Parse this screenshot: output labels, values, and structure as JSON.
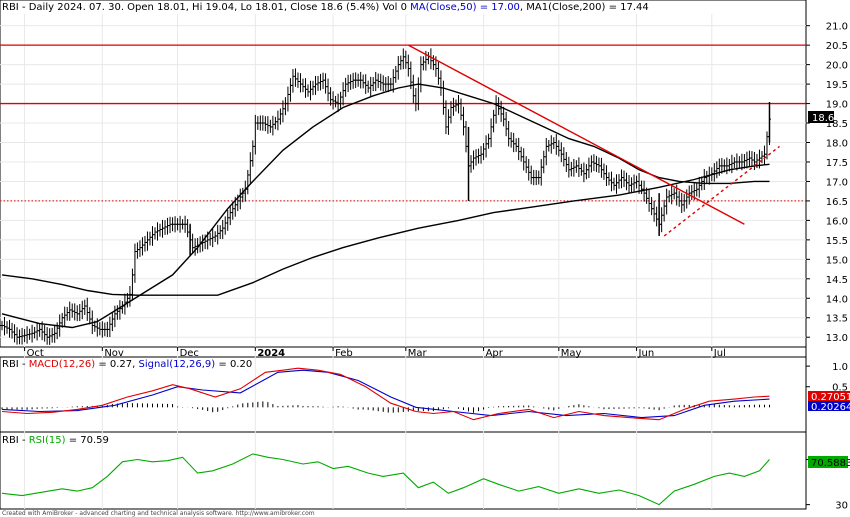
{
  "chart_data": [
    {
      "type": "candlestick",
      "symbol": "RBI",
      "interval": "Daily",
      "header": {
        "sym": "RBI",
        "info": " - Daily 2024. 07. 30. Open 18.01, Hi 19.04, Lo 18.01, Close 18.6 (5.4%) Vol 0 ",
        "ma50": "MA(Close,50) = 17.00",
        "ma200": ", MA1(Close,200) = 17.44"
      },
      "colors": {
        "ma50": "#0000cc",
        "ma200": "#0000cc",
        "line": "#000000",
        "resistance": "#e00000",
        "trend": "#e00000"
      },
      "ylim": [
        12.8,
        21.3
      ],
      "yticks": [
        "21.0",
        "20.5",
        "20.0",
        "19.5",
        "19.0",
        "18.5",
        "18.0",
        "17.5",
        "17.0",
        "16.5",
        "16.0",
        "15.5",
        "15.0",
        "14.5",
        "14.0",
        "13.5",
        "13.0"
      ],
      "month_labels": [
        "Oct",
        "Nov",
        "Dec",
        "2024",
        "Feb",
        "Mar",
        "Apr",
        "May",
        "Jun",
        "Jul"
      ],
      "x_range_days": [
        0,
        307
      ],
      "month_starts": [
        9,
        40,
        70,
        101,
        132,
        161,
        192,
        222,
        253,
        283
      ],
      "last_price_tag": "18.6",
      "horizontal_levels": [
        {
          "price": 20.5,
          "style": "solid",
          "color": "#e00000"
        },
        {
          "price": 19.0,
          "style": "solid",
          "color": "#e00000"
        },
        {
          "price": 16.5,
          "style": "dotted",
          "color": "#e00000"
        }
      ],
      "trendlines": [
        {
          "from": [
            162,
            20.5
          ],
          "to": [
            296,
            15.9
          ],
          "style": "solid",
          "color": "#e00000"
        },
        {
          "from": [
            264,
            15.6
          ],
          "to": [
            310,
            17.9
          ],
          "style": "dashed",
          "color": "#e00000"
        }
      ],
      "close": [
        [
          0,
          13.3
        ],
        [
          3,
          13.2
        ],
        [
          6,
          13.0
        ],
        [
          9,
          13.05
        ],
        [
          12,
          13.1
        ],
        [
          15,
          13.2
        ],
        [
          18,
          13.0
        ],
        [
          21,
          13.1
        ],
        [
          24,
          13.5
        ],
        [
          27,
          13.7
        ],
        [
          30,
          13.6
        ],
        [
          33,
          13.8
        ],
        [
          36,
          13.3
        ],
        [
          39,
          13.2
        ],
        [
          42,
          13.2
        ],
        [
          45,
          13.6
        ],
        [
          48,
          13.8
        ],
        [
          51,
          14.1
        ],
        [
          52,
          14.6
        ],
        [
          53,
          15.2
        ],
        [
          55,
          15.3
        ],
        [
          58,
          15.5
        ],
        [
          61,
          15.7
        ],
        [
          64,
          15.8
        ],
        [
          67,
          15.9
        ],
        [
          70,
          15.9
        ],
        [
          73,
          15.9
        ],
        [
          76,
          15.3
        ],
        [
          79,
          15.4
        ],
        [
          82,
          15.5
        ],
        [
          85,
          15.6
        ],
        [
          88,
          15.8
        ],
        [
          91,
          16.2
        ],
        [
          94,
          16.5
        ],
        [
          97,
          16.8
        ],
        [
          100,
          17.9
        ],
        [
          101,
          18.5
        ],
        [
          104,
          18.5
        ],
        [
          107,
          18.4
        ],
        [
          110,
          18.6
        ],
        [
          113,
          19.0
        ],
        [
          116,
          19.7
        ],
        [
          119,
          19.5
        ],
        [
          122,
          19.3
        ],
        [
          125,
          19.5
        ],
        [
          128,
          19.6
        ],
        [
          131,
          19.1
        ],
        [
          134,
          19.0
        ],
        [
          137,
          19.5
        ],
        [
          140,
          19.6
        ],
        [
          143,
          19.6
        ],
        [
          146,
          19.4
        ],
        [
          149,
          19.6
        ],
        [
          152,
          19.5
        ],
        [
          155,
          19.5
        ],
        [
          158,
          20.0
        ],
        [
          160,
          20.2
        ],
        [
          162,
          19.9
        ],
        [
          164,
          19.2
        ],
        [
          165,
          19.0
        ],
        [
          167,
          20.0
        ],
        [
          170,
          20.2
        ],
        [
          173,
          19.9
        ],
        [
          175,
          19.4
        ],
        [
          176,
          18.9
        ],
        [
          177,
          18.4
        ],
        [
          179,
          18.9
        ],
        [
          182,
          19.0
        ],
        [
          184,
          18.4
        ],
        [
          186,
          17.4
        ],
        [
          188,
          17.6
        ],
        [
          191,
          17.7
        ],
        [
          194,
          18.1
        ],
        [
          195,
          18.4
        ],
        [
          197,
          19.0
        ],
        [
          200,
          18.6
        ],
        [
          202,
          18.1
        ],
        [
          205,
          17.9
        ],
        [
          208,
          17.5
        ],
        [
          211,
          17.1
        ],
        [
          214,
          17.1
        ],
        [
          217,
          17.9
        ],
        [
          220,
          18.0
        ],
        [
          223,
          17.7
        ],
        [
          226,
          17.3
        ],
        [
          229,
          17.4
        ],
        [
          232,
          17.2
        ],
        [
          235,
          17.5
        ],
        [
          238,
          17.4
        ],
        [
          241,
          17.1
        ],
        [
          244,
          16.9
        ],
        [
          247,
          17.1
        ],
        [
          250,
          16.9
        ],
        [
          253,
          17.0
        ],
        [
          256,
          16.7
        ],
        [
          259,
          16.3
        ],
        [
          262,
          15.9
        ],
        [
          265,
          16.6
        ],
        [
          268,
          16.7
        ],
        [
          271,
          16.4
        ],
        [
          274,
          16.7
        ],
        [
          277,
          16.8
        ],
        [
          280,
          17.1
        ],
        [
          283,
          17.2
        ],
        [
          286,
          17.4
        ],
        [
          289,
          17.4
        ],
        [
          292,
          17.5
        ],
        [
          295,
          17.5
        ],
        [
          298,
          17.6
        ],
        [
          300,
          17.5
        ],
        [
          302,
          17.6
        ],
        [
          304,
          17.7
        ],
        [
          306,
          18.6
        ]
      ],
      "ma50": [
        [
          0,
          13.6
        ],
        [
          15,
          13.35
        ],
        [
          28,
          13.25
        ],
        [
          38,
          13.4
        ],
        [
          48,
          13.8
        ],
        [
          58,
          14.2
        ],
        [
          68,
          14.6
        ],
        [
          78,
          15.3
        ],
        [
          90,
          16.3
        ],
        [
          100,
          17.0
        ],
        [
          112,
          17.8
        ],
        [
          124,
          18.4
        ],
        [
          136,
          18.9
        ],
        [
          148,
          19.2
        ],
        [
          158,
          19.4
        ],
        [
          166,
          19.5
        ],
        [
          176,
          19.4
        ],
        [
          186,
          19.2
        ],
        [
          196,
          19.0
        ],
        [
          206,
          18.7
        ],
        [
          216,
          18.4
        ],
        [
          226,
          18.1
        ],
        [
          236,
          17.9
        ],
        [
          246,
          17.6
        ],
        [
          254,
          17.3
        ],
        [
          262,
          17.1
        ],
        [
          270,
          17.0
        ],
        [
          280,
          16.95
        ],
        [
          290,
          16.95
        ],
        [
          300,
          17.0
        ],
        [
          306,
          17.0
        ]
      ],
      "ma200": [
        [
          0,
          14.6
        ],
        [
          12,
          14.5
        ],
        [
          24,
          14.35
        ],
        [
          34,
          14.2
        ],
        [
          44,
          14.1
        ],
        [
          54,
          14.08
        ],
        [
          64,
          14.08
        ],
        [
          76,
          14.08
        ],
        [
          86,
          14.08
        ],
        [
          100,
          14.4
        ],
        [
          112,
          14.75
        ],
        [
          124,
          15.05
        ],
        [
          136,
          15.3
        ],
        [
          150,
          15.55
        ],
        [
          166,
          15.8
        ],
        [
          182,
          16.0
        ],
        [
          196,
          16.2
        ],
        [
          212,
          16.35
        ],
        [
          228,
          16.5
        ],
        [
          246,
          16.65
        ],
        [
          262,
          16.85
        ],
        [
          276,
          17.05
        ],
        [
          290,
          17.3
        ],
        [
          300,
          17.4
        ],
        [
          306,
          17.44
        ]
      ]
    },
    {
      "type": "line",
      "indicator": "MACD",
      "header": {
        "sym": "RBI",
        "macd": "MACD(12,26)",
        "macd_val": " = 0.27, ",
        "signal": "Signal(12,26,9)",
        "signal_val": " = 0.20"
      },
      "colors": {
        "macd": "#e00000",
        "signal": "#0000cc",
        "hist": "#000000"
      },
      "ylim": [
        -0.55,
        1.1
      ],
      "yticks": [
        "1.0",
        "0.5"
      ],
      "value_tags": [
        "0.270514",
        "0.202647"
      ],
      "macd": [
        [
          0,
          -0.1
        ],
        [
          10,
          -0.15
        ],
        [
          20,
          -0.12
        ],
        [
          30,
          -0.05
        ],
        [
          40,
          0.05
        ],
        [
          50,
          0.25
        ],
        [
          60,
          0.4
        ],
        [
          68,
          0.55
        ],
        [
          75,
          0.45
        ],
        [
          85,
          0.25
        ],
        [
          95,
          0.45
        ],
        [
          105,
          0.85
        ],
        [
          112,
          0.9
        ],
        [
          118,
          0.95
        ],
        [
          126,
          0.9
        ],
        [
          135,
          0.8
        ],
        [
          145,
          0.5
        ],
        [
          155,
          0.1
        ],
        [
          165,
          -0.1
        ],
        [
          172,
          -0.15
        ],
        [
          180,
          -0.1
        ],
        [
          188,
          -0.3
        ],
        [
          198,
          -0.15
        ],
        [
          210,
          -0.05
        ],
        [
          220,
          -0.25
        ],
        [
          230,
          -0.1
        ],
        [
          240,
          -0.2
        ],
        [
          250,
          -0.25
        ],
        [
          262,
          -0.3
        ],
        [
          272,
          -0.05
        ],
        [
          282,
          0.15
        ],
        [
          292,
          0.2
        ],
        [
          300,
          0.25
        ],
        [
          306,
          0.27
        ]
      ],
      "signal": [
        [
          0,
          -0.05
        ],
        [
          15,
          -0.1
        ],
        [
          30,
          -0.08
        ],
        [
          45,
          0.05
        ],
        [
          60,
          0.3
        ],
        [
          70,
          0.5
        ],
        [
          80,
          0.42
        ],
        [
          95,
          0.35
        ],
        [
          110,
          0.85
        ],
        [
          120,
          0.9
        ],
        [
          130,
          0.85
        ],
        [
          142,
          0.65
        ],
        [
          155,
          0.25
        ],
        [
          165,
          0.0
        ],
        [
          180,
          -0.1
        ],
        [
          195,
          -0.2
        ],
        [
          210,
          -0.1
        ],
        [
          225,
          -0.2
        ],
        [
          240,
          -0.15
        ],
        [
          255,
          -0.25
        ],
        [
          268,
          -0.2
        ],
        [
          280,
          0.05
        ],
        [
          292,
          0.15
        ],
        [
          306,
          0.2
        ]
      ]
    },
    {
      "type": "line",
      "indicator": "RSI",
      "header": {
        "sym": "RBI",
        "rsi": "RSI(15)",
        "rsi_val": " = 70.59"
      },
      "color": "#00aa00",
      "ylim": [
        27,
        82
      ],
      "yticks": [
        "70",
        "30"
      ],
      "value_tag": "70.5883",
      "rsi": [
        [
          0,
          40
        ],
        [
          8,
          38
        ],
        [
          16,
          41
        ],
        [
          24,
          44
        ],
        [
          30,
          42
        ],
        [
          36,
          45
        ],
        [
          42,
          55
        ],
        [
          48,
          68
        ],
        [
          54,
          70
        ],
        [
          60,
          68
        ],
        [
          66,
          69
        ],
        [
          72,
          72
        ],
        [
          78,
          58
        ],
        [
          84,
          60
        ],
        [
          92,
          66
        ],
        [
          100,
          75
        ],
        [
          106,
          72
        ],
        [
          112,
          70
        ],
        [
          120,
          66
        ],
        [
          126,
          68
        ],
        [
          132,
          62
        ],
        [
          138,
          64
        ],
        [
          146,
          58
        ],
        [
          152,
          55
        ],
        [
          160,
          58
        ],
        [
          166,
          45
        ],
        [
          172,
          50
        ],
        [
          178,
          40
        ],
        [
          184,
          45
        ],
        [
          192,
          53
        ],
        [
          198,
          48
        ],
        [
          206,
          42
        ],
        [
          214,
          46
        ],
        [
          222,
          40
        ],
        [
          230,
          44
        ],
        [
          238,
          40
        ],
        [
          246,
          43
        ],
        [
          254,
          38
        ],
        [
          262,
          30
        ],
        [
          268,
          42
        ],
        [
          276,
          48
        ],
        [
          284,
          55
        ],
        [
          290,
          58
        ],
        [
          296,
          55
        ],
        [
          302,
          60
        ],
        [
          306,
          70
        ]
      ]
    }
  ],
  "footer": "Created with AmiBroker - advanced charting and technical analysis software. http://www.amibroker.com"
}
